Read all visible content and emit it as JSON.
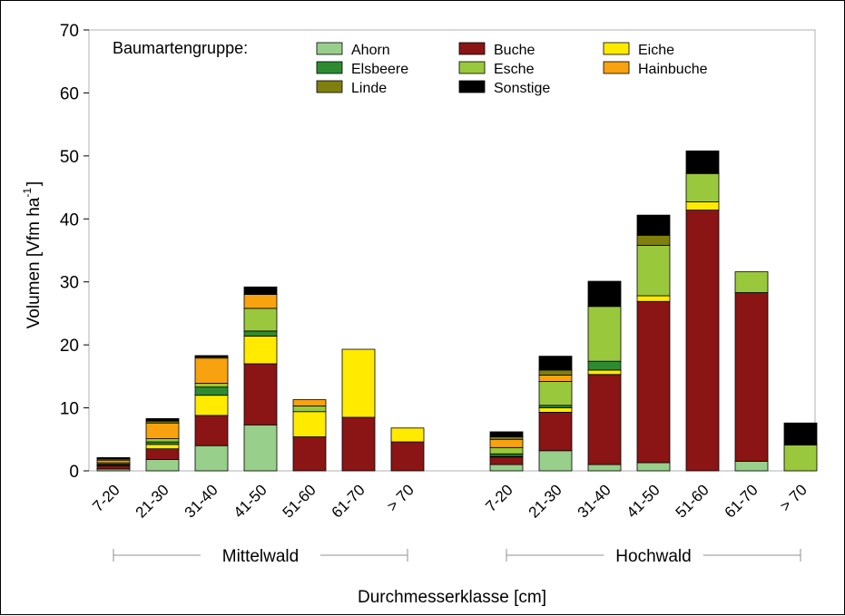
{
  "chart_data": {
    "type": "bar",
    "stacked": true,
    "title": "",
    "xlabel": "Durchmesserklasse [cm]",
    "ylabel": "Volumen [Vfm ha",
    "ylabel_sup": "-1",
    "ylabel_close": "]",
    "ylim": [
      0,
      70
    ],
    "yticks": [
      0,
      10,
      20,
      30,
      40,
      50,
      60,
      70
    ],
    "legend_title": "Baumartengruppe:",
    "legend_position": "top",
    "groups": [
      {
        "name": "Mittelwald",
        "categories": [
          "7-20",
          "21-30",
          "31-40",
          "41-50",
          "51-60",
          "61-70",
          "> 70"
        ]
      },
      {
        "name": "Hochwald",
        "categories": [
          "7-20",
          "21-30",
          "31-40",
          "41-50",
          "51-60",
          "61-70",
          "> 70"
        ]
      }
    ],
    "series": [
      {
        "name": "Ahorn",
        "color": "#98cf8b",
        "values": [
          0.3,
          1.8,
          4.0,
          7.3,
          0.0,
          0.0,
          0.0,
          1.0,
          3.2,
          1.0,
          1.3,
          0.0,
          1.5,
          0.0
        ]
      },
      {
        "name": "Buche",
        "color": "#8b1414",
        "values": [
          0.5,
          1.7,
          4.8,
          9.7,
          5.4,
          8.5,
          4.6,
          1.2,
          6.1,
          14.3,
          25.6,
          41.4,
          26.8,
          0.0
        ]
      },
      {
        "name": "Eiche",
        "color": "#ffea00",
        "values": [
          0.1,
          0.7,
          3.2,
          4.4,
          4.0,
          10.8,
          2.2,
          0.1,
          0.7,
          0.7,
          0.9,
          1.3,
          0.0,
          0.0
        ]
      },
      {
        "name": "Elsbeere",
        "color": "#2e8b32",
        "values": [
          0.2,
          0.4,
          1.3,
          0.8,
          0.0,
          0.0,
          0.0,
          0.4,
          0.4,
          1.4,
          0.0,
          0.0,
          0.0,
          0.0
        ]
      },
      {
        "name": "Esche",
        "color": "#9ac83c",
        "values": [
          0.2,
          0.5,
          0.6,
          3.6,
          0.9,
          0.0,
          0.0,
          1.0,
          3.8,
          8.7,
          8.0,
          4.5,
          3.3,
          4.1
        ]
      },
      {
        "name": "Hainbuche",
        "color": "#f8a20f",
        "values": [
          0.4,
          2.5,
          4.0,
          2.2,
          1.0,
          0.0,
          0.0,
          1.3,
          1.0,
          0.0,
          0.0,
          0.0,
          0.0,
          0.0
        ]
      },
      {
        "name": "Linde",
        "color": "#7f7f0d",
        "values": [
          0.2,
          0.3,
          0.2,
          0.0,
          0.0,
          0.0,
          0.0,
          0.4,
          0.8,
          0.0,
          1.6,
          0.0,
          0.0,
          0.0
        ]
      },
      {
        "name": "Sonstige",
        "color": "#000000",
        "values": [
          0.2,
          0.4,
          0.2,
          1.2,
          0.0,
          0.0,
          0.0,
          0.8,
          2.2,
          4.0,
          3.2,
          3.6,
          0.0,
          3.5
        ]
      }
    ],
    "legend_order": [
      "Ahorn",
      "Buche",
      "Eiche",
      "Elsbeere",
      "Esche",
      "Hainbuche",
      "Linde",
      "Sonstige"
    ],
    "grid": false
  }
}
